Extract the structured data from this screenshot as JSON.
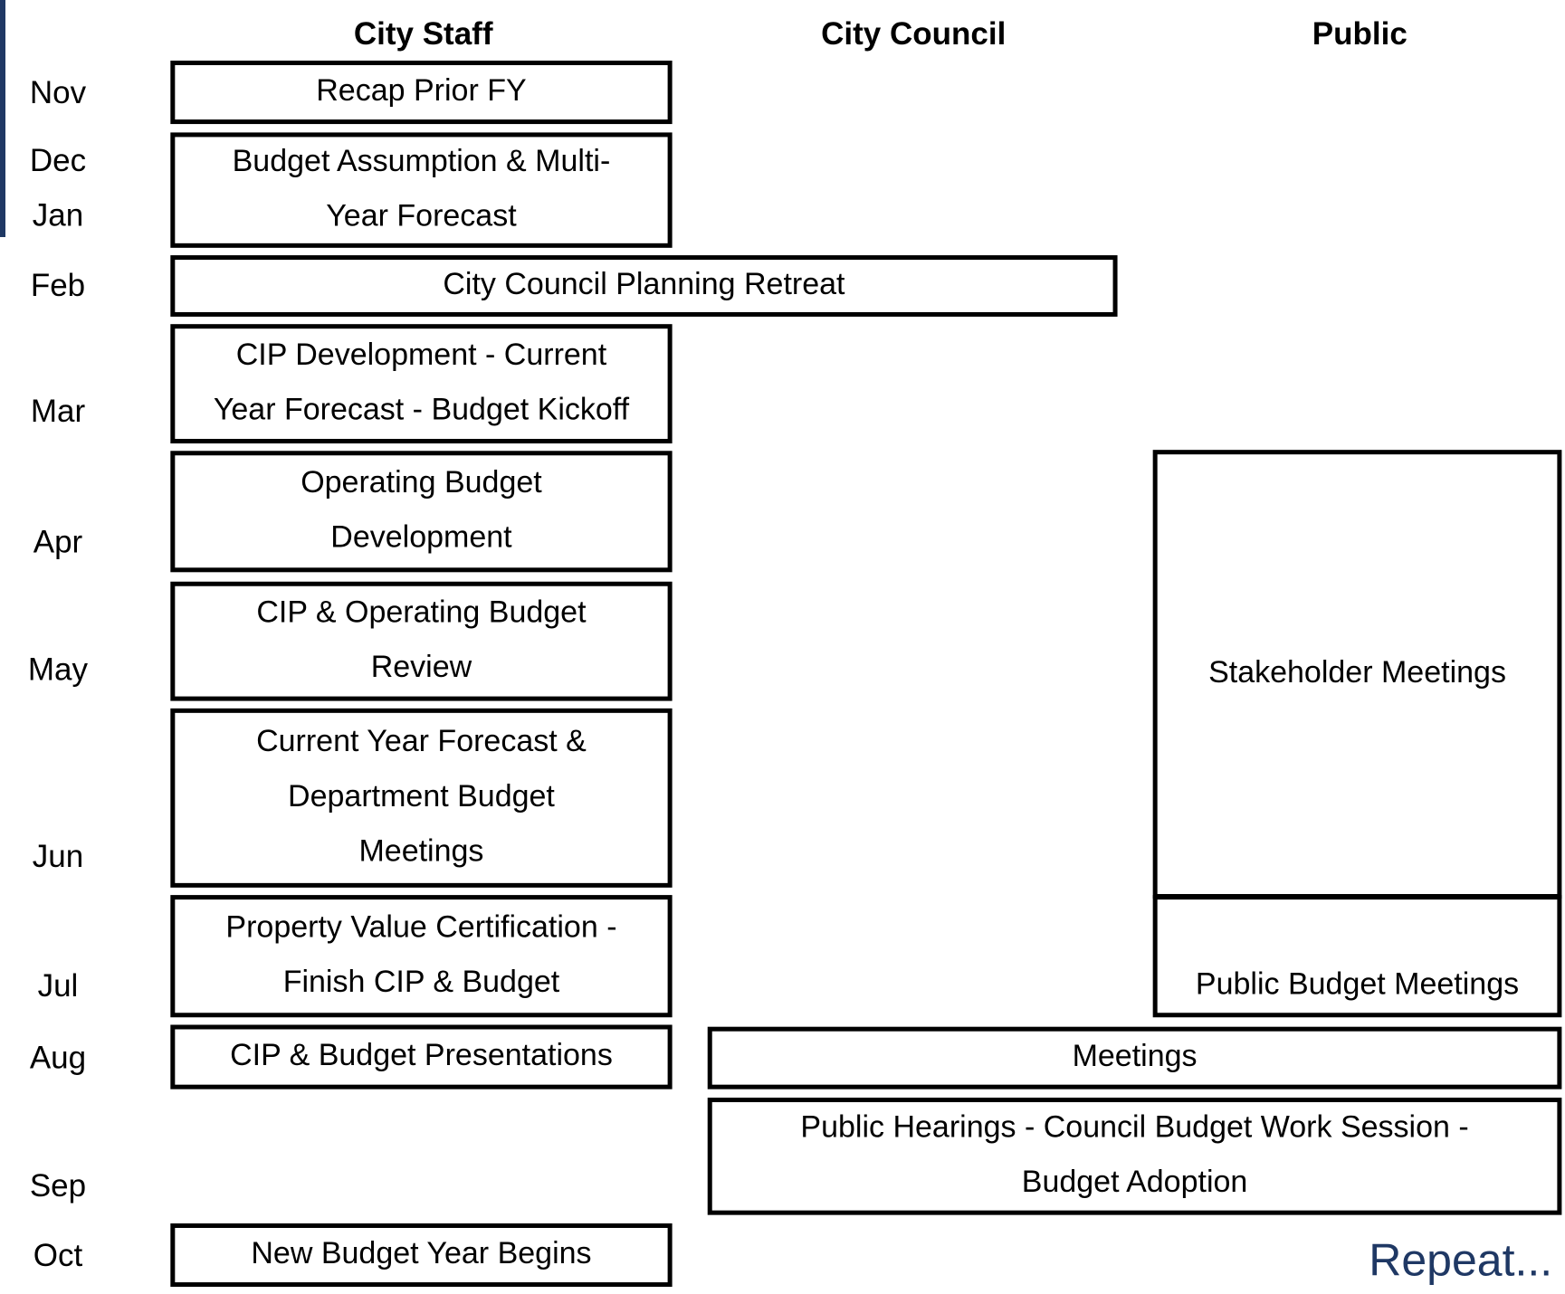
{
  "columns": [
    "City Staff",
    "City Council",
    "Public"
  ],
  "months": [
    "Nov",
    "Dec",
    "Jan",
    "Feb",
    "Mar",
    "Apr",
    "May",
    "Jun",
    "Jul",
    "Aug",
    "Sep",
    "Oct"
  ],
  "boxes": [
    {
      "lines": [
        "Recap Prior FY"
      ]
    },
    {
      "lines": [
        "Budget Assumption & Multi-",
        "Year Forecast"
      ]
    },
    {
      "lines": [
        "City Council Planning Retreat"
      ]
    },
    {
      "lines": [
        "CIP Development - Current",
        "Year Forecast - Budget Kickoff"
      ]
    },
    {
      "lines": [
        "Operating Budget",
        "Development"
      ]
    },
    {
      "lines": [
        "CIP & Operating Budget",
        "Review"
      ]
    },
    {
      "lines": [
        "Current Year Forecast &",
        "Department Budget",
        "Meetings"
      ]
    },
    {
      "lines": [
        "Property Value Certification -",
        "Finish CIP & Budget"
      ]
    },
    {
      "lines": [
        "CIP & Budget Presentations"
      ]
    },
    {
      "lines": [
        "Meetings"
      ]
    },
    {
      "lines": [
        "Public Hearings - Council Budget Work Session -",
        "Budget Adoption"
      ]
    },
    {
      "lines": [
        "New Budget Year Begins"
      ]
    },
    {
      "lines": [
        "Stakeholder Meetings"
      ]
    },
    {
      "lines": [
        "Public Budget Meetings"
      ]
    }
  ],
  "footer": "Repeat..."
}
